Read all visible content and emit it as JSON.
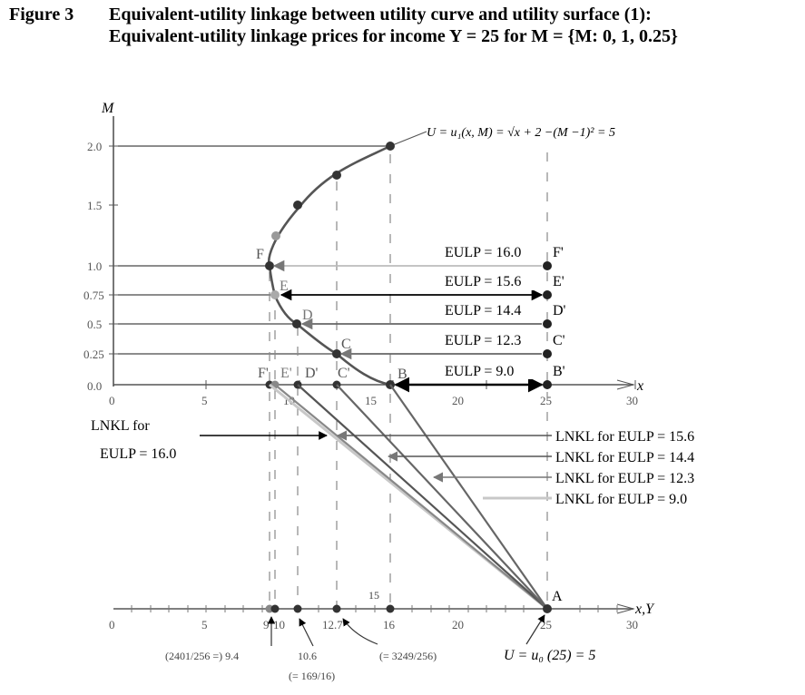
{
  "title": {
    "number": "Figure 3",
    "line1": "Equivalent-utility linkage between utility curve and utility surface (1):",
    "line2": "Equivalent-utility linkage prices for income Y = 25 for M = {M: 0, 1, 0.25}"
  },
  "axes": {
    "m_label": "M",
    "x_label": "x",
    "xy_label": "x,Y",
    "m_ticks": [
      "2.0",
      "1.5",
      "1.0",
      "0.75",
      "0.5",
      "0.25",
      "0.0"
    ],
    "x_ticks_top": [
      "0",
      "5",
      "10",
      "15",
      "20",
      "25",
      "30"
    ],
    "x_ticks_bottom": [
      "0",
      "5",
      "9",
      "10",
      "12.7",
      "16",
      "20",
      "25",
      "30"
    ],
    "bottom_15": "15"
  },
  "curve_equation": "U = u₁(x, M)  =  √x  + 2 −(M −1)² = 5",
  "points": {
    "curve": [
      "F",
      "E",
      "D",
      "C",
      "B"
    ],
    "curve_primes": [
      "F'",
      "E'",
      "D'",
      "C'",
      "B'"
    ],
    "right": [
      "F'",
      "E'",
      "D'",
      "C'",
      "B'"
    ],
    "A": "A"
  },
  "eulp": [
    "EULP = 16.0",
    "EULP = 15.6",
    "EULP = 14.4",
    "EULP = 12.3",
    "EULP = 9.0"
  ],
  "lnkl_left": {
    "line1": "LNKL for",
    "line2": "EULP = 16.0"
  },
  "lnkl_right": [
    "LNKL for EULP = 15.6",
    "LNKL for EULP = 14.4",
    "LNKL for EULP = 12.3",
    "LNKL for EULP = 9.0"
  ],
  "annotations": {
    "left": "(2401/256 =) 9.4",
    "mid": "10.6",
    "mid_sub": "(= 169/16)",
    "right": "(= 3249/256)",
    "u0": "U = u₀ (25) = 5"
  },
  "colors": {
    "curve": "#555555",
    "point": "#222222",
    "light": "#bdbdbd",
    "axis": "#444444"
  }
}
